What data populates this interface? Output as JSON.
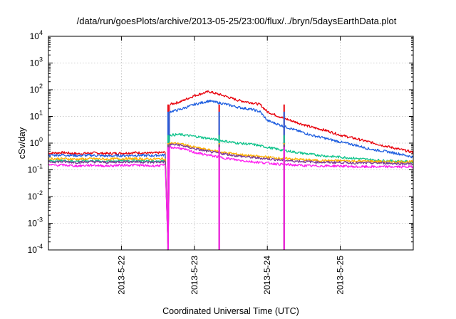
{
  "chart_data": {
    "type": "line",
    "title": "/data/run/goesPlots/archive/2013-05-25/23:00/flux/../bryn/5daysEarthData.plot",
    "xlabel": "Coordinated Universal Time (UTC)",
    "ylabel": "cSv/day",
    "yscale": "log",
    "ylim": [
      0.0001,
      10000
    ],
    "xlim": [
      0,
      5
    ],
    "x_unit": "days since 2013-05-21 00:00 UTC",
    "y_ticks": [
      {
        "value": 0.0001,
        "base": "10",
        "exp": "-4"
      },
      {
        "value": 0.001,
        "base": "10",
        "exp": "-3"
      },
      {
        "value": 0.01,
        "base": "10",
        "exp": "-2"
      },
      {
        "value": 0.1,
        "base": "10",
        "exp": "-1"
      },
      {
        "value": 1,
        "base": "10",
        "exp": "0"
      },
      {
        "value": 10,
        "base": "10",
        "exp": "1"
      },
      {
        "value": 100,
        "base": "10",
        "exp": "2"
      },
      {
        "value": 1000,
        "base": "10",
        "exp": "3"
      },
      {
        "value": 10000,
        "base": "10",
        "exp": "4"
      }
    ],
    "x_ticks": [
      {
        "x": 1,
        "label": "2013-5-22"
      },
      {
        "x": 2,
        "label": "2013-5-23"
      },
      {
        "x": 3,
        "label": "2013-5-24"
      },
      {
        "x": 4,
        "label": "2013-5-25"
      }
    ],
    "grid": true,
    "legend": "none",
    "series": [
      {
        "color": "#e8000b",
        "x": [
          0,
          0.2,
          0.4,
          0.6,
          0.8,
          1.0,
          1.2,
          1.4,
          1.6,
          1.64,
          1.66,
          1.8,
          2.0,
          2.2,
          2.4,
          2.6,
          2.8,
          2.9,
          3.0,
          3.2,
          3.4,
          3.6,
          3.8,
          4.0,
          4.2,
          4.4,
          4.6,
          4.8,
          5.0
        ],
        "values": [
          0.42,
          0.44,
          0.4,
          0.43,
          0.41,
          0.42,
          0.44,
          0.42,
          0.45,
          0.0001,
          28,
          35,
          60,
          85,
          60,
          40,
          32,
          28,
          15,
          9,
          6,
          4,
          3,
          2,
          1.5,
          1.1,
          0.8,
          0.6,
          0.45
        ]
      },
      {
        "color": "#1f5fe0",
        "x": [
          0,
          0.2,
          0.4,
          0.6,
          0.8,
          1.0,
          1.2,
          1.4,
          1.6,
          1.64,
          1.66,
          1.8,
          2.0,
          2.2,
          2.4,
          2.6,
          2.8,
          2.9,
          3.0,
          3.2,
          3.4,
          3.6,
          3.8,
          4.0,
          4.2,
          4.4,
          4.6,
          4.8,
          5.0
        ],
        "values": [
          0.35,
          0.36,
          0.34,
          0.35,
          0.33,
          0.34,
          0.35,
          0.34,
          0.36,
          0.0001,
          15,
          18,
          28,
          38,
          30,
          22,
          18,
          15,
          7,
          4.5,
          3,
          2,
          1.5,
          1.1,
          0.85,
          0.6,
          0.5,
          0.4,
          0.3
        ]
      },
      {
        "color": "#12c48c",
        "x": [
          0,
          0.2,
          0.4,
          0.6,
          0.8,
          1.0,
          1.2,
          1.4,
          1.6,
          1.64,
          1.66,
          1.8,
          2.0,
          2.2,
          2.4,
          2.6,
          2.8,
          3.0,
          3.2,
          3.4,
          3.6,
          3.8,
          4.0,
          4.2,
          4.4,
          4.6,
          4.8,
          5.0
        ],
        "values": [
          0.22,
          0.22,
          0.21,
          0.22,
          0.21,
          0.22,
          0.22,
          0.21,
          0.22,
          0.0001,
          2.0,
          2.1,
          1.8,
          1.5,
          1.2,
          1.0,
          0.9,
          0.7,
          0.55,
          0.45,
          0.38,
          0.33,
          0.3,
          0.27,
          0.24,
          0.22,
          0.21,
          0.2
        ]
      },
      {
        "color": "#ffb000",
        "x": [
          0,
          0.2,
          0.4,
          0.6,
          0.8,
          1.0,
          1.2,
          1.4,
          1.6,
          1.64,
          1.66,
          1.8,
          2.0,
          2.2,
          2.4,
          2.6,
          2.8,
          3.0,
          3.2,
          3.4,
          3.6,
          3.8,
          4.0,
          4.2,
          4.4,
          4.6,
          4.8,
          5.0
        ],
        "values": [
          0.26,
          0.26,
          0.25,
          0.26,
          0.25,
          0.26,
          0.26,
          0.25,
          0.26,
          0.0001,
          1.0,
          0.95,
          0.7,
          0.55,
          0.45,
          0.38,
          0.33,
          0.3,
          0.27,
          0.25,
          0.23,
          0.22,
          0.22,
          0.21,
          0.21,
          0.2,
          0.2,
          0.2
        ]
      },
      {
        "color": "#7b3a96",
        "x": [
          0,
          0.2,
          0.4,
          0.6,
          0.8,
          1.0,
          1.2,
          1.4,
          1.6,
          1.64,
          1.66,
          1.8,
          2.0,
          2.2,
          2.4,
          2.6,
          2.8,
          3.0,
          3.2,
          3.4,
          3.6,
          3.8,
          4.0,
          4.2,
          4.4,
          4.6,
          4.8,
          5.0
        ],
        "values": [
          0.2,
          0.2,
          0.19,
          0.2,
          0.19,
          0.2,
          0.2,
          0.19,
          0.2,
          0.0001,
          0.9,
          0.85,
          0.62,
          0.48,
          0.4,
          0.33,
          0.29,
          0.26,
          0.23,
          0.21,
          0.2,
          0.19,
          0.19,
          0.18,
          0.18,
          0.18,
          0.17,
          0.17
        ]
      },
      {
        "color": "#ff1cf0",
        "x": [
          0,
          0.2,
          0.4,
          0.6,
          0.8,
          1.0,
          1.2,
          1.4,
          1.6,
          1.64,
          1.66,
          1.8,
          2.0,
          2.2,
          2.4,
          2.6,
          2.8,
          3.0,
          3.2,
          3.4,
          3.6,
          3.8,
          4.0,
          4.2,
          4.4,
          4.6,
          4.8,
          5.0
        ],
        "values": [
          0.15,
          0.15,
          0.14,
          0.15,
          0.14,
          0.15,
          0.15,
          0.14,
          0.15,
          0.0001,
          0.7,
          0.65,
          0.45,
          0.35,
          0.28,
          0.23,
          0.2,
          0.18,
          0.16,
          0.15,
          0.14,
          0.14,
          0.14,
          0.13,
          0.13,
          0.13,
          0.13,
          0.13
        ]
      }
    ],
    "dropouts": [
      {
        "x": 1.64,
        "xend": 1.86,
        "series": "all"
      },
      {
        "x": 2.34,
        "xend": 2.36,
        "series": "all"
      },
      {
        "x": 3.23,
        "xend": 3.25,
        "series": "all"
      }
    ]
  }
}
